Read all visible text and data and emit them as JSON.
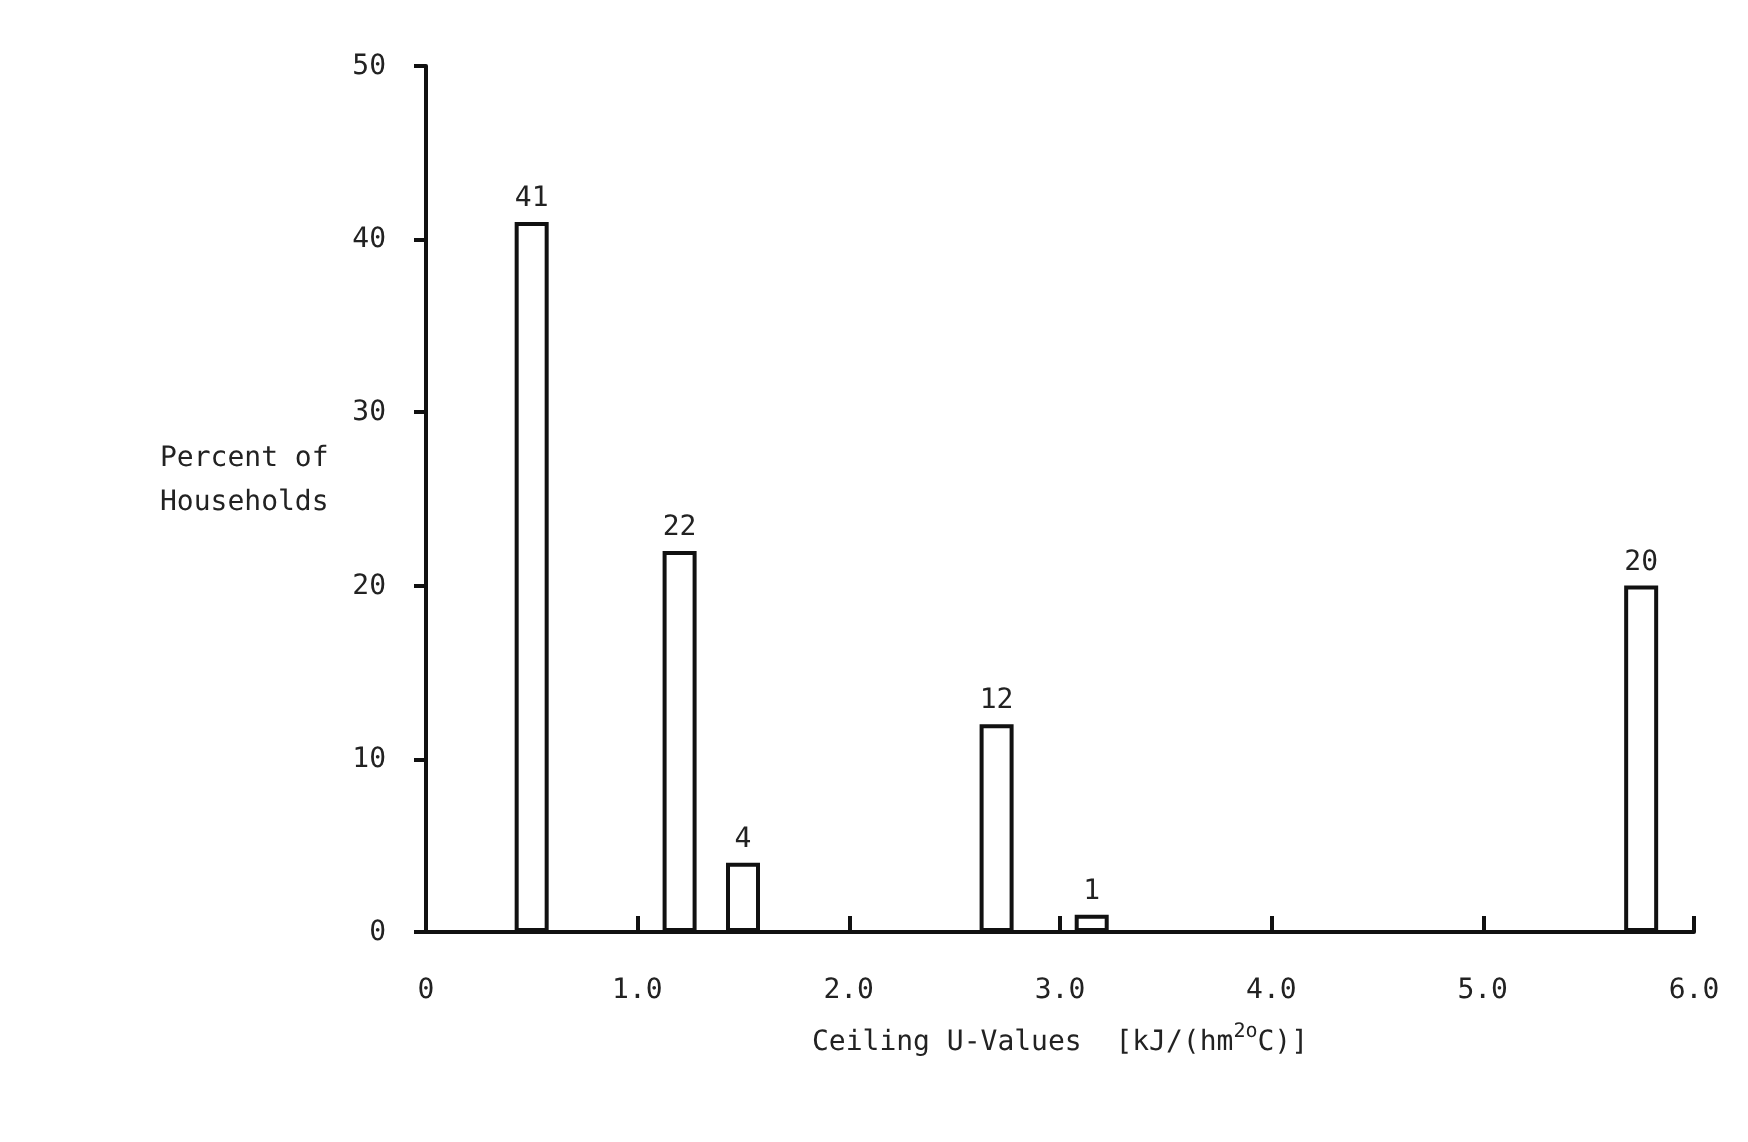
{
  "chart_data": {
    "type": "bar",
    "xlabel": "Ceiling U-Values  [kJ/(hm$^{2o}$C)]",
    "ylabel": "Percent of Households",
    "x": [
      0.5,
      1.2,
      1.5,
      2.7,
      3.15,
      5.75
    ],
    "values": [
      41,
      22,
      4,
      12,
      1,
      20
    ],
    "color": "#ffffff",
    "data_labels": true,
    "xlim": [
      0,
      6
    ],
    "xticks": [
      0,
      {
        "value": 1,
        "label": "1.0"
      },
      {
        "value": 2,
        "label": "2.0"
      },
      {
        "value": 3,
        "label": "3.0"
      },
      {
        "value": 4,
        "label": "4.0"
      },
      {
        "value": 5,
        "label": "5.0"
      },
      {
        "value": 6,
        "label": "6.0"
      }
    ],
    "ylim": [
      0,
      50
    ],
    "yticks": [
      0,
      10,
      20,
      30,
      40,
      50
    ],
    "grid": false
  }
}
